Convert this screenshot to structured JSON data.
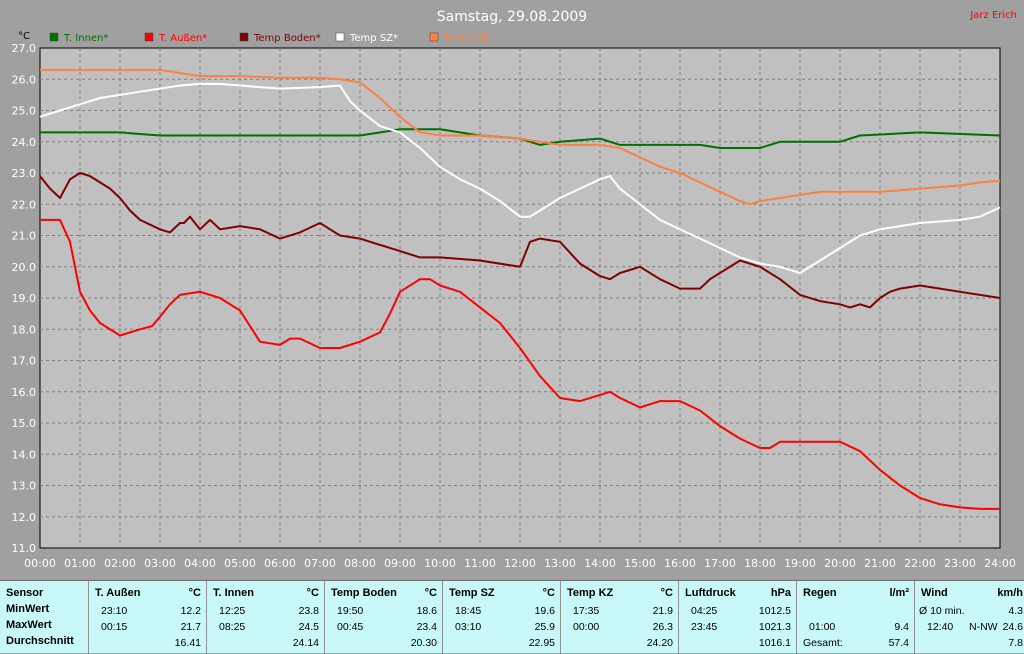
{
  "chart_data": {
    "type": "line",
    "title": "Samstag, 29.08.2009",
    "author": "Jarz Erich",
    "ylabel": "°C",
    "ylim": [
      11,
      27
    ],
    "yticks": [
      "11.0",
      "12.0",
      "13.0",
      "14.0",
      "15.0",
      "16.0",
      "17.0",
      "18.0",
      "19.0",
      "20.0",
      "21.0",
      "22.0",
      "23.0",
      "24.0",
      "25.0",
      "26.0",
      "27.0"
    ],
    "xlim": [
      0,
      24
    ],
    "xticks": [
      "00:00",
      "01:00",
      "02:00",
      "03:00",
      "04:00",
      "05:00",
      "06:00",
      "07:00",
      "08:00",
      "09:00",
      "10:00",
      "11:00",
      "12:00",
      "13:00",
      "14:00",
      "15:00",
      "16:00",
      "17:00",
      "18:00",
      "19:00",
      "20:00",
      "21:00",
      "22:00",
      "23:00",
      "24:00"
    ],
    "grid": true,
    "legend_position": "top-left",
    "series": [
      {
        "name": "T. Innen*",
        "color": "#007000",
        "points": [
          [
            0,
            24.3
          ],
          [
            2,
            24.3
          ],
          [
            3,
            24.2
          ],
          [
            7.5,
            24.2
          ],
          [
            8,
            24.2
          ],
          [
            9,
            24.4
          ],
          [
            10,
            24.4
          ],
          [
            11,
            24.2
          ],
          [
            12,
            24.1
          ],
          [
            12.5,
            23.9
          ],
          [
            13,
            24.0
          ],
          [
            14,
            24.1
          ],
          [
            14.5,
            23.9
          ],
          [
            16.5,
            23.9
          ],
          [
            17,
            23.8
          ],
          [
            18,
            23.8
          ],
          [
            18.5,
            24.0
          ],
          [
            20,
            24.0
          ],
          [
            20.5,
            24.2
          ],
          [
            22,
            24.3
          ],
          [
            24,
            24.2
          ]
        ]
      },
      {
        "name": "T. Außen*",
        "color": "#ff0000",
        "points": [
          [
            0,
            21.5
          ],
          [
            0.5,
            21.5
          ],
          [
            0.75,
            20.8
          ],
          [
            1,
            19.2
          ],
          [
            1.25,
            18.6
          ],
          [
            1.5,
            18.2
          ],
          [
            2,
            17.8
          ],
          [
            2.5,
            18.0
          ],
          [
            2.8,
            18.1
          ],
          [
            3,
            18.4
          ],
          [
            3.25,
            18.8
          ],
          [
            3.5,
            19.1
          ],
          [
            4,
            19.2
          ],
          [
            4.5,
            19.0
          ],
          [
            5,
            18.6
          ],
          [
            5.25,
            18.1
          ],
          [
            5.5,
            17.6
          ],
          [
            6,
            17.5
          ],
          [
            6.25,
            17.7
          ],
          [
            6.5,
            17.7
          ],
          [
            7,
            17.4
          ],
          [
            7.5,
            17.4
          ],
          [
            8,
            17.6
          ],
          [
            8.5,
            17.9
          ],
          [
            8.75,
            18.5
          ],
          [
            9,
            19.2
          ],
          [
            9.5,
            19.6
          ],
          [
            9.75,
            19.6
          ],
          [
            10,
            19.4
          ],
          [
            10.5,
            19.2
          ],
          [
            11,
            18.7
          ],
          [
            11.5,
            18.2
          ],
          [
            12,
            17.4
          ],
          [
            12.5,
            16.5
          ],
          [
            13,
            15.8
          ],
          [
            13.5,
            15.7
          ],
          [
            14,
            15.9
          ],
          [
            14.25,
            16.0
          ],
          [
            14.5,
            15.8
          ],
          [
            15,
            15.5
          ],
          [
            15.5,
            15.7
          ],
          [
            16,
            15.7
          ],
          [
            16.5,
            15.4
          ],
          [
            17,
            14.9
          ],
          [
            17.5,
            14.5
          ],
          [
            18,
            14.2
          ],
          [
            18.25,
            14.2
          ],
          [
            18.5,
            14.4
          ],
          [
            19,
            14.4
          ],
          [
            20,
            14.4
          ],
          [
            20.5,
            14.1
          ],
          [
            21,
            13.5
          ],
          [
            21.5,
            13.0
          ],
          [
            22,
            12.6
          ],
          [
            22.5,
            12.4
          ],
          [
            23,
            12.3
          ],
          [
            23.5,
            12.25
          ],
          [
            24,
            12.25
          ]
        ]
      },
      {
        "name": "Temp Boden*",
        "color": "#800000",
        "points": [
          [
            0,
            22.9
          ],
          [
            0.25,
            22.5
          ],
          [
            0.5,
            22.2
          ],
          [
            0.75,
            22.8
          ],
          [
            1,
            23.0
          ],
          [
            1.25,
            22.9
          ],
          [
            1.5,
            22.7
          ],
          [
            1.75,
            22.5
          ],
          [
            2,
            22.2
          ],
          [
            2.25,
            21.8
          ],
          [
            2.5,
            21.5
          ],
          [
            3,
            21.2
          ],
          [
            3.25,
            21.1
          ],
          [
            3.5,
            21.4
          ],
          [
            3.6,
            21.4
          ],
          [
            3.75,
            21.6
          ],
          [
            4,
            21.2
          ],
          [
            4.25,
            21.5
          ],
          [
            4.5,
            21.2
          ],
          [
            5,
            21.3
          ],
          [
            5.5,
            21.2
          ],
          [
            6,
            20.9
          ],
          [
            6.5,
            21.1
          ],
          [
            7,
            21.4
          ],
          [
            7.25,
            21.2
          ],
          [
            7.5,
            21.0
          ],
          [
            8,
            20.9
          ],
          [
            8.5,
            20.7
          ],
          [
            9,
            20.5
          ],
          [
            9.5,
            20.3
          ],
          [
            10,
            20.3
          ],
          [
            11,
            20.2
          ],
          [
            12,
            20.0
          ],
          [
            12.25,
            20.8
          ],
          [
            12.5,
            20.9
          ],
          [
            13,
            20.8
          ],
          [
            13.5,
            20.1
          ],
          [
            14,
            19.7
          ],
          [
            14.25,
            19.6
          ],
          [
            14.5,
            19.8
          ],
          [
            15,
            20.0
          ],
          [
            15.5,
            19.6
          ],
          [
            16,
            19.3
          ],
          [
            16.5,
            19.3
          ],
          [
            16.75,
            19.6
          ],
          [
            17,
            19.8
          ],
          [
            17.5,
            20.2
          ],
          [
            18,
            20.0
          ],
          [
            18.5,
            19.6
          ],
          [
            19,
            19.1
          ],
          [
            19.5,
            18.9
          ],
          [
            20,
            18.8
          ],
          [
            20.25,
            18.7
          ],
          [
            20.5,
            18.8
          ],
          [
            20.75,
            18.7
          ],
          [
            21,
            19.0
          ],
          [
            21.25,
            19.2
          ],
          [
            21.5,
            19.3
          ],
          [
            22,
            19.4
          ],
          [
            22.5,
            19.3
          ],
          [
            23,
            19.2
          ],
          [
            24,
            19.0
          ]
        ]
      },
      {
        "name": "Temp SZ*",
        "color": "#ffffff",
        "points": [
          [
            0,
            24.8
          ],
          [
            0.5,
            25.0
          ],
          [
            1,
            25.2
          ],
          [
            1.5,
            25.4
          ],
          [
            2,
            25.5
          ],
          [
            2.5,
            25.6
          ],
          [
            3,
            25.7
          ],
          [
            3.5,
            25.8
          ],
          [
            4,
            25.85
          ],
          [
            4.5,
            25.85
          ],
          [
            5,
            25.8
          ],
          [
            5.5,
            25.75
          ],
          [
            6,
            25.7
          ],
          [
            7,
            25.75
          ],
          [
            7.5,
            25.8
          ],
          [
            7.75,
            25.3
          ],
          [
            8,
            25.0
          ],
          [
            8.5,
            24.5
          ],
          [
            9,
            24.3
          ],
          [
            9.5,
            23.8
          ],
          [
            10,
            23.2
          ],
          [
            10.5,
            22.8
          ],
          [
            11,
            22.5
          ],
          [
            11.5,
            22.1
          ],
          [
            12,
            21.6
          ],
          [
            12.25,
            21.6
          ],
          [
            12.5,
            21.8
          ],
          [
            13,
            22.2
          ],
          [
            13.5,
            22.5
          ],
          [
            14,
            22.8
          ],
          [
            14.25,
            22.9
          ],
          [
            14.5,
            22.5
          ],
          [
            15,
            22.0
          ],
          [
            15.5,
            21.5
          ],
          [
            16,
            21.2
          ],
          [
            16.5,
            20.9
          ],
          [
            17,
            20.6
          ],
          [
            17.5,
            20.3
          ],
          [
            18,
            20.1
          ],
          [
            18.5,
            20.0
          ],
          [
            19,
            19.8
          ],
          [
            19.5,
            20.2
          ],
          [
            20,
            20.6
          ],
          [
            20.5,
            21.0
          ],
          [
            21,
            21.2
          ],
          [
            21.5,
            21.3
          ],
          [
            22,
            21.4
          ],
          [
            23,
            21.5
          ],
          [
            23.5,
            21.6
          ],
          [
            24,
            21.9
          ]
        ]
      },
      {
        "name": "Temp KZ*",
        "color": "#ff8040",
        "points": [
          [
            0,
            26.3
          ],
          [
            0.5,
            26.3
          ],
          [
            1,
            26.3
          ],
          [
            2,
            26.3
          ],
          [
            3,
            26.3
          ],
          [
            3.5,
            26.2
          ],
          [
            4,
            26.1
          ],
          [
            5,
            26.1
          ],
          [
            6,
            26.05
          ],
          [
            7,
            26.05
          ],
          [
            7.5,
            26.0
          ],
          [
            8,
            25.9
          ],
          [
            8.5,
            25.4
          ],
          [
            9,
            24.8
          ],
          [
            9.5,
            24.3
          ],
          [
            10,
            24.2
          ],
          [
            10.5,
            24.2
          ],
          [
            11,
            24.2
          ],
          [
            11.5,
            24.15
          ],
          [
            12,
            24.1
          ],
          [
            12.5,
            24.0
          ],
          [
            13,
            23.9
          ],
          [
            13.5,
            23.9
          ],
          [
            14,
            23.9
          ],
          [
            14.5,
            23.8
          ],
          [
            15,
            23.5
          ],
          [
            15.5,
            23.2
          ],
          [
            16,
            23.0
          ],
          [
            16.5,
            22.7
          ],
          [
            17,
            22.4
          ],
          [
            17.5,
            22.1
          ],
          [
            17.75,
            22.0
          ],
          [
            18,
            22.1
          ],
          [
            18.5,
            22.2
          ],
          [
            19,
            22.3
          ],
          [
            19.5,
            22.4
          ],
          [
            20,
            22.4
          ],
          [
            20.5,
            22.4
          ],
          [
            21,
            22.4
          ],
          [
            21.5,
            22.45
          ],
          [
            22,
            22.5
          ],
          [
            22.5,
            22.55
          ],
          [
            23,
            22.6
          ],
          [
            23.5,
            22.7
          ],
          [
            24,
            22.75
          ]
        ]
      }
    ]
  },
  "stats": {
    "row_labels": [
      "Sensor",
      "MinWert",
      "MaxWert",
      "Durchschnitt"
    ],
    "columns": [
      {
        "name": "T. Außen",
        "unit": "°C",
        "min_time": "23:10",
        "min": "12.2",
        "max_time": "00:15",
        "max": "21.7",
        "avg": "16.41"
      },
      {
        "name": "T. Innen",
        "unit": "°C",
        "min_time": "12:25",
        "min": "23.8",
        "max_time": "08:25",
        "max": "24.5",
        "avg": "24.14"
      },
      {
        "name": "Temp Boden",
        "unit": "°C",
        "min_time": "19:50",
        "min": "18.6",
        "max_time": "00:45",
        "max": "23.4",
        "avg": "20.30"
      },
      {
        "name": "Temp SZ",
        "unit": "°C",
        "min_time": "18:45",
        "min": "19.6",
        "max_time": "03:10",
        "max": "25.9",
        "avg": "22.95"
      },
      {
        "name": "Temp KZ",
        "unit": "°C",
        "min_time": "17:35",
        "min": "21.9",
        "max_time": "00:00",
        "max": "26.3",
        "avg": "24.20"
      },
      {
        "name": "Luftdruck",
        "unit": "hPa",
        "min_time": "04:25",
        "min": "1012.5",
        "max_time": "23:45",
        "max": "1021.3",
        "avg": "1016.1"
      },
      {
        "name": "Regen",
        "unit": "l/m²",
        "min_time": "",
        "min": "",
        "max_time": "01:00",
        "max": "9.4",
        "avg_label": "Gesamt:",
        "avg": "57.4"
      },
      {
        "name": "Wind",
        "unit": "km/h",
        "min_time": "Ø 10 min.",
        "min": "4.3",
        "max_time": "12:40",
        "max_dir": "N-NW",
        "max": "24.6",
        "avg": "7.8"
      }
    ]
  }
}
